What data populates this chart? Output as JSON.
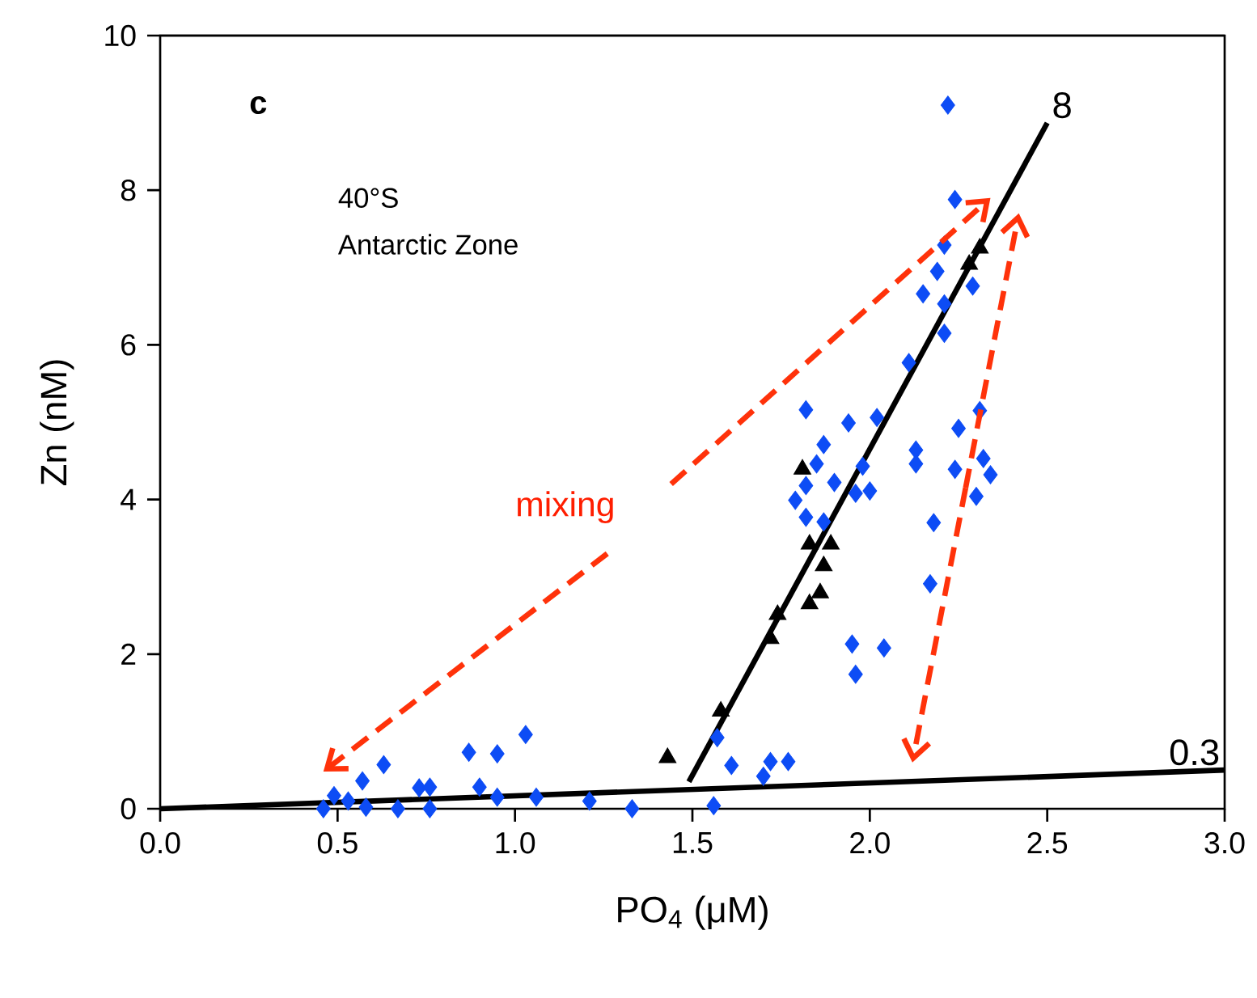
{
  "chart_data": {
    "type": "scatter",
    "xlabel": "PO$_{4}$ (μM)",
    "ylabel": "Zn (nM)",
    "xlim": [
      0,
      3
    ],
    "ylim": [
      0,
      10
    ],
    "xticks": [
      {
        "value": 0,
        "label": "0.0"
      },
      {
        "value": 0.5,
        "label": "0.5"
      },
      {
        "value": 1,
        "label": "1.0"
      },
      {
        "value": 1.5,
        "label": "1.5"
      },
      {
        "value": 2,
        "label": "2.0"
      },
      {
        "value": 2.5,
        "label": "2.5"
      },
      {
        "value": 3,
        "label": "3.0"
      }
    ],
    "yticks": [
      0,
      2,
      4,
      6,
      8,
      10
    ],
    "series": [
      {
        "marker": "diamond",
        "color": "#0d4cf5",
        "x": [
          0.46,
          0.49,
          0.53,
          0.57,
          0.58,
          0.63,
          0.67,
          0.73,
          0.76,
          0.76,
          0.87,
          0.9,
          0.95,
          0.95,
          1.03,
          1.06,
          1.21,
          1.33,
          1.56,
          1.57,
          1.61,
          1.72,
          1.77,
          1.7,
          2.21,
          2.19,
          2.15,
          2.21,
          2.29,
          2.21,
          2.11,
          1.82,
          1.94,
          2.02,
          2.31,
          2.25,
          1.87,
          2.13,
          2.13,
          1.85,
          1.98,
          2.32,
          2.24,
          2.34,
          1.9,
          1.82,
          2.0,
          1.96,
          1.79,
          2.3,
          1.82,
          1.87,
          2.18,
          2.17,
          1.95,
          2.04,
          1.96,
          2.22,
          2.24
        ],
        "values": [
          0.0,
          0.17,
          0.1,
          0.36,
          0.02,
          0.57,
          0.0,
          0.27,
          0.28,
          0.0,
          0.73,
          0.28,
          0.15,
          0.71,
          0.96,
          0.15,
          0.1,
          0.0,
          0.04,
          0.92,
          0.56,
          0.61,
          0.61,
          0.42,
          7.29,
          6.95,
          6.66,
          6.53,
          6.76,
          6.15,
          5.77,
          5.16,
          4.99,
          5.06,
          5.15,
          4.92,
          4.71,
          4.64,
          4.46,
          4.46,
          4.43,
          4.53,
          4.39,
          4.32,
          4.22,
          4.18,
          4.11,
          4.08,
          3.99,
          4.04,
          3.77,
          3.71,
          3.7,
          2.91,
          2.13,
          2.08,
          1.74,
          9.1,
          7.88
        ]
      },
      {
        "marker": "triangle",
        "color": "#000000",
        "x": [
          1.43,
          1.58,
          1.72,
          1.74,
          1.86,
          1.83,
          1.87,
          1.89,
          1.83,
          1.81,
          2.28,
          2.31
        ],
        "values": [
          0.66,
          1.26,
          2.2,
          2.51,
          2.79,
          2.65,
          3.14,
          3.42,
          3.42,
          4.39,
          7.04,
          7.25
        ]
      },
      {
        "type": "line",
        "color": "#000000",
        "x": [
          1.49,
          2.5
        ],
        "values": [
          0.35,
          8.87
        ]
      },
      {
        "type": "line",
        "color": "#000000",
        "x": [
          0,
          3
        ],
        "values": [
          0,
          0.5
        ]
      }
    ],
    "annotations": [
      "c",
      "40°S",
      "Antarctic Zone",
      "mixing",
      {
        "text": "8",
        "x": 2.5,
        "y": 8.87
      },
      {
        "text": "0.3",
        "x": 3,
        "y": 0.5
      }
    ]
  }
}
